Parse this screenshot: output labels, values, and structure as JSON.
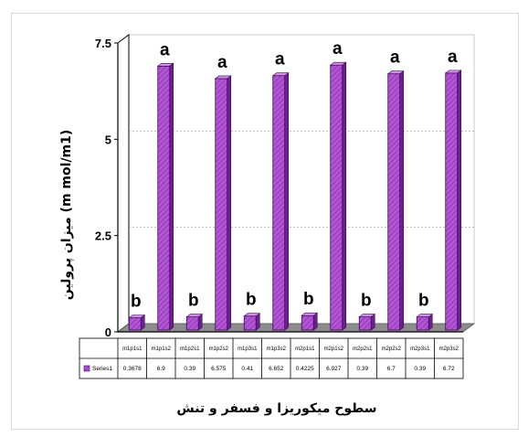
{
  "chart_data": {
    "type": "bar",
    "title": "",
    "ylabel": "میزان پرولین (m mol/m1)",
    "xlabel": "سطوح میکوریزا و فسفر و تنش",
    "ylim": [
      0,
      7.5
    ],
    "yticks": [
      "0",
      "2.5",
      "5",
      "7.5"
    ],
    "grid": true,
    "categories": [
      "m1p1s1",
      "m1p1s2",
      "m1p2s1",
      "m1p2s2",
      "m1p3s1",
      "m1p3s2",
      "m2p1s1",
      "m2p1s2",
      "m2p2s1",
      "m2p2s2",
      "m2p3s1",
      "m2p3s2"
    ],
    "series": [
      {
        "name": "Series1",
        "values": [
          0.3678,
          6.9,
          0.39,
          6.575,
          0.41,
          6.652,
          0.4225,
          6.927,
          0.39,
          6.7,
          0.39,
          6.72
        ],
        "value_labels": [
          "0.3678",
          "6.9",
          "0.39",
          "6.575",
          "0.41",
          "6.652",
          "0.4225",
          "6.927",
          "0.39",
          "6.7",
          "0.39",
          "6.72"
        ]
      }
    ],
    "annotations": [
      "b",
      "a",
      "b",
      "a",
      "b",
      "a",
      "b",
      "a",
      "b",
      "a",
      "b",
      "a"
    ],
    "colors": {
      "bar_front": "#b455d6",
      "bar_side": "#6e1f8f",
      "bar_top": "#d08ee8",
      "hatch": "#7a2aa0"
    }
  }
}
